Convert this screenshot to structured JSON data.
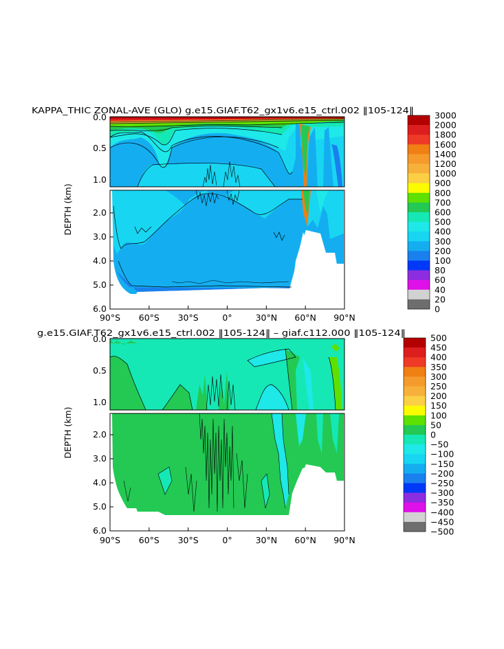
{
  "chart_data": [
    {
      "type": "heatmap",
      "title": "KAPPA_THIC ZONAL-AVE (GLO) g.e15.GIAF.T62_gx1v6.e15_ctrl.002 ‖105-124‖",
      "ylabel": "DEPTH (km)",
      "xlabel": "",
      "xticks": [
        "90°S",
        "60°S",
        "30°S",
        "0°",
        "30°N",
        "60°N",
        "90°N"
      ],
      "yticks_upper": [
        "0.0",
        "0.5",
        "1.0"
      ],
      "yticks_lower": [
        "2.0",
        "3.0",
        "4.0",
        "5.0",
        "6.0"
      ],
      "xlim": [
        -90,
        90
      ],
      "ylim_km": [
        6.0,
        0.0
      ],
      "colorbar": {
        "labels": [
          "3000",
          "2000",
          "1800",
          "1600",
          "1400",
          "1200",
          "1000",
          "900",
          "800",
          "700",
          "600",
          "500",
          "400",
          "300",
          "200",
          "100",
          "80",
          "60",
          "40",
          "20",
          "0"
        ],
        "colors": [
          "#b30000",
          "#dd1e1e",
          "#ee3a26",
          "#f07f14",
          "#f59a2c",
          "#f7b13a",
          "#fbd045",
          "#fcfc00",
          "#5ee000",
          "#23c953",
          "#16e8b5",
          "#1ee8e8",
          "#18d6f2",
          "#14aef0",
          "#1a80ee",
          "#0038f8",
          "#8d2de0",
          "#e010e8",
          "#d2d2d2",
          "#6e6e6e"
        ]
      }
    },
    {
      "type": "heatmap",
      "title": "g.e15.GIAF.T62_gx1v6.e15_ctrl.002 ‖105-124‖ – giaf.c112.000 ‖105-124‖",
      "ylabel": "DEPTH (km)",
      "xlabel": "",
      "xticks": [
        "90°S",
        "60°S",
        "30°S",
        "0°",
        "30°N",
        "60°N",
        "90°N"
      ],
      "yticks_upper": [
        "0.0",
        "0.5",
        "1.0"
      ],
      "yticks_lower": [
        "2.0",
        "3.0",
        "4.0",
        "5.0",
        "6.0"
      ],
      "xlim": [
        -90,
        90
      ],
      "ylim_km": [
        6.0,
        0.0
      ],
      "colorbar": {
        "labels": [
          "500",
          "450",
          "400",
          "350",
          "300",
          "250",
          "200",
          "150",
          "100",
          "50",
          "0",
          "−50",
          "−100",
          "−150",
          "−200",
          "−250",
          "−300",
          "−350",
          "−400",
          "−450",
          "−500"
        ],
        "colors": [
          "#b30000",
          "#dd1e1e",
          "#ee3a26",
          "#f07f14",
          "#f59a2c",
          "#f7b13a",
          "#fbd045",
          "#fcfc00",
          "#5ee000",
          "#23c953",
          "#16e8b5",
          "#1ee8e8",
          "#18d6f2",
          "#14aef0",
          "#1a80ee",
          "#0038f8",
          "#8d2de0",
          "#e010e8",
          "#d2d2d2",
          "#6e6e6e"
        ]
      }
    }
  ]
}
